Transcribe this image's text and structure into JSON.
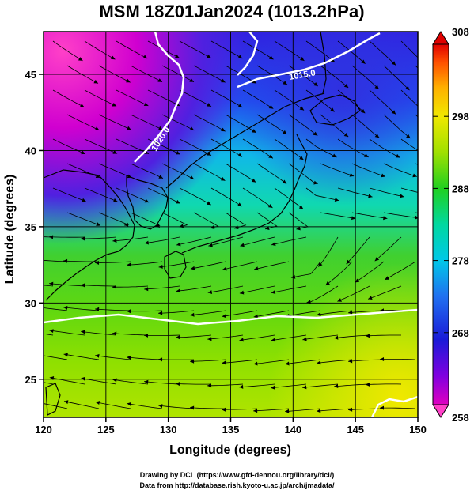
{
  "chart_data": {
    "type": "heatmap",
    "title": "MSM 18Z01Jan2024 (1013.2hPa)",
    "xlabel": "Longitude (degrees)",
    "ylabel": "Latitude  (degrees)",
    "xlim": [
      120,
      150
    ],
    "ylim": [
      22.5,
      47.8
    ],
    "x_ticks": [
      120,
      125,
      130,
      135,
      140,
      145,
      150
    ],
    "y_ticks": [
      25,
      30,
      35,
      40,
      45
    ],
    "grid": true,
    "colorbar": {
      "min": 258,
      "max": 308,
      "ticks": [
        258,
        268,
        278,
        288,
        298,
        308
      ],
      "colors": [
        "#d000d0",
        "#8000e0",
        "#1020d0",
        "#1060f0",
        "#00c0e8",
        "#00d8a0",
        "#20d020",
        "#90e000",
        "#e0e000",
        "#ffb000",
        "#ff5000",
        "#e00000"
      ],
      "placement": "right"
    },
    "contours": [
      {
        "label": "1020.0",
        "level": 1020.0
      },
      {
        "label": "1015.0",
        "level": 1015.0
      }
    ],
    "overlay": "streamlines"
  },
  "credits": {
    "line1": "Drawing by DCL (https://www.gfd-dennou.org/library/dcl/)",
    "line2": "Data from http://database.rish.kyoto-u.ac.jp/arch/jmadata/"
  }
}
